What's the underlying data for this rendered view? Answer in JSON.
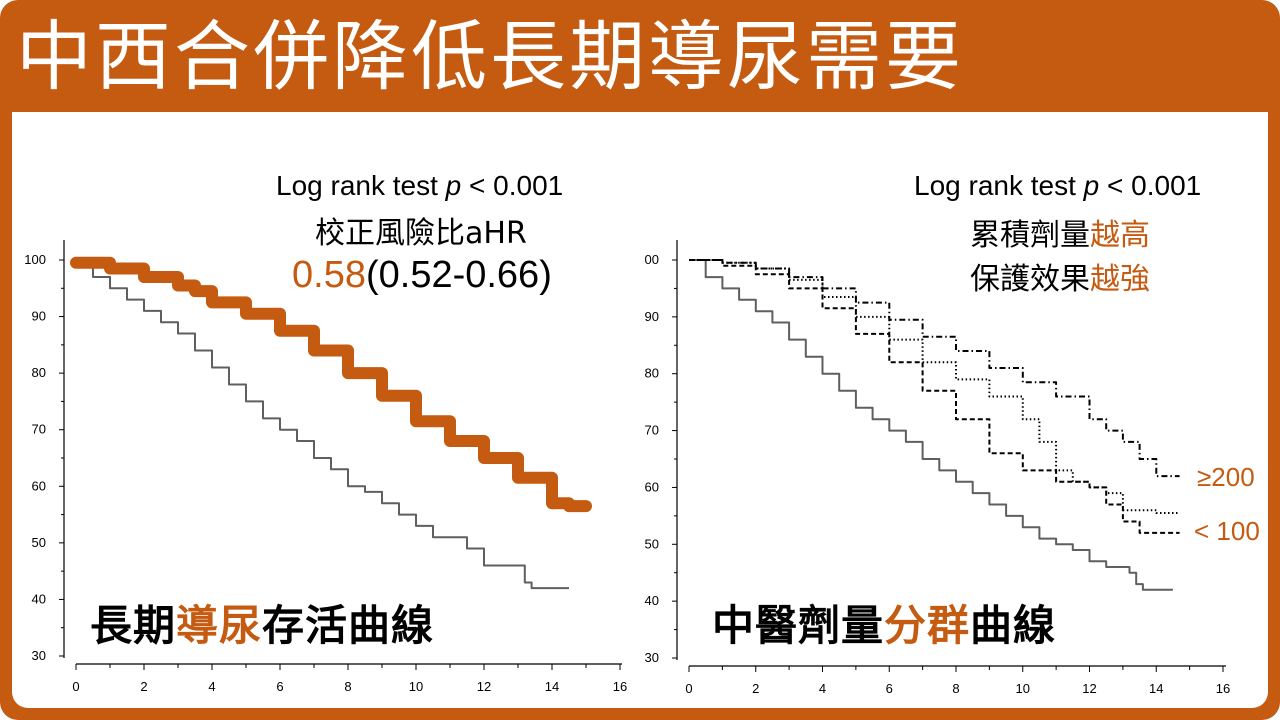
{
  "slide": {
    "title": "中西合併降低長期導尿需要"
  },
  "left_panel": {
    "stat_line": {
      "prefix": "Log rank test ",
      "p": "p",
      "suffix": " < 0.001"
    },
    "ahr_label": "校正風險比aHR",
    "ahr_value": "0.58",
    "ahr_ci": "(0.52-0.66)",
    "caption": {
      "part1": "長期",
      "part2": "導尿",
      "part3": "存活曲線"
    }
  },
  "right_panel": {
    "stat_line": {
      "prefix": "Log rank test ",
      "p": "p",
      "suffix": " < 0.001"
    },
    "line1": {
      "part1": "累積劑量",
      "part2": "越高"
    },
    "line2": {
      "part1": "保護效果",
      "part2": "越強"
    },
    "caption": {
      "part1": "中醫劑量",
      "part2": "分群",
      "part3": "曲線"
    },
    "group_high": "≥200",
    "group_low": "< 100"
  },
  "colors": {
    "accent": "#c55a11",
    "gray_curve": "#5f5f5f",
    "dark_curve": "#000000"
  },
  "chart_data": [
    {
      "type": "line",
      "xlim": [
        0,
        16
      ],
      "ylim": [
        30,
        100
      ],
      "x_ticks": [
        "0",
        "2",
        "4",
        "6",
        "8",
        "10",
        "12",
        "14",
        "16"
      ],
      "y_ticks": [
        "30",
        "40",
        "50",
        "60",
        "70",
        "80",
        "90",
        "100"
      ],
      "grid": false,
      "series": [
        {
          "style": "gray",
          "points": [
            [
              0,
              100
            ],
            [
              0.5,
              97
            ],
            [
              1,
              95
            ],
            [
              1.5,
              93
            ],
            [
              2,
              91
            ],
            [
              2.5,
              89
            ],
            [
              3,
              87
            ],
            [
              3.5,
              84
            ],
            [
              4,
              81
            ],
            [
              4.5,
              78
            ],
            [
              5,
              75
            ],
            [
              5.5,
              72
            ],
            [
              6,
              70
            ],
            [
              6.5,
              68
            ],
            [
              7,
              65
            ],
            [
              7.5,
              63
            ],
            [
              8,
              60
            ],
            [
              8.5,
              59
            ],
            [
              9,
              57
            ],
            [
              9.5,
              55
            ],
            [
              10,
              53
            ],
            [
              10.5,
              51
            ],
            [
              11,
              51
            ],
            [
              11.5,
              49
            ],
            [
              12,
              46
            ],
            [
              13,
              46
            ],
            [
              13.2,
              43
            ],
            [
              13.4,
              42
            ],
            [
              14.5,
              42
            ]
          ]
        },
        {
          "style": "orange-thick",
          "points": [
            [
              0,
              99.5
            ],
            [
              1,
              98.5
            ],
            [
              2,
              97
            ],
            [
              3,
              95.5
            ],
            [
              3.5,
              94.5
            ],
            [
              4,
              92.5
            ],
            [
              5,
              90.5
            ],
            [
              6,
              87.5
            ],
            [
              7,
              84
            ],
            [
              8,
              80
            ],
            [
              9,
              76
            ],
            [
              10,
              71.5
            ],
            [
              11,
              68
            ],
            [
              12,
              65
            ],
            [
              13,
              61.5
            ],
            [
              14,
              57
            ],
            [
              14.5,
              56.5
            ],
            [
              15,
              56.5
            ]
          ]
        }
      ]
    },
    {
      "type": "line",
      "xlim": [
        0,
        16
      ],
      "ylim": [
        30,
        100
      ],
      "x_ticks": [
        "0",
        "2",
        "4",
        "6",
        "8",
        "10",
        "12",
        "14",
        "16"
      ],
      "y_ticks": [
        "30",
        "40",
        "50",
        "60",
        "70",
        "80",
        "90",
        "00"
      ],
      "grid": false,
      "series": [
        {
          "style": "gray",
          "points": [
            [
              0,
              100
            ],
            [
              0.5,
              97
            ],
            [
              1,
              95
            ],
            [
              1.5,
              93
            ],
            [
              2,
              91
            ],
            [
              2.5,
              89
            ],
            [
              3,
              86
            ],
            [
              3.5,
              83
            ],
            [
              4,
              80
            ],
            [
              4.5,
              77
            ],
            [
              5,
              74
            ],
            [
              5.5,
              72
            ],
            [
              6,
              70
            ],
            [
              6.5,
              68
            ],
            [
              7,
              65
            ],
            [
              7.5,
              63
            ],
            [
              8,
              61
            ],
            [
              8.5,
              59
            ],
            [
              9,
              57
            ],
            [
              9.5,
              55
            ],
            [
              10,
              53
            ],
            [
              10.5,
              51
            ],
            [
              11,
              50
            ],
            [
              11.5,
              49
            ],
            [
              12,
              47
            ],
            [
              12.5,
              46
            ],
            [
              13,
              46
            ],
            [
              13.2,
              45
            ],
            [
              13.4,
              43
            ],
            [
              13.6,
              42
            ],
            [
              14.5,
              42
            ]
          ]
        },
        {
          "style": "dashed",
          "points": [
            [
              0,
              100
            ],
            [
              1,
              99
            ],
            [
              2,
              97.5
            ],
            [
              3,
              95
            ],
            [
              4,
              91.5
            ],
            [
              5,
              87
            ],
            [
              6,
              82
            ],
            [
              7,
              77
            ],
            [
              8,
              72
            ],
            [
              9,
              66
            ],
            [
              10,
              63
            ],
            [
              11,
              61
            ],
            [
              12,
              60
            ],
            [
              12.5,
              57
            ],
            [
              13,
              54
            ],
            [
              13.5,
              52
            ],
            [
              14,
              52
            ],
            [
              14.7,
              52
            ]
          ]
        },
        {
          "style": "dotted",
          "points": [
            [
              0,
              100
            ],
            [
              1,
              99.5
            ],
            [
              2,
              98.5
            ],
            [
              3,
              96.5
            ],
            [
              4,
              93.5
            ],
            [
              5,
              90
            ],
            [
              6,
              86
            ],
            [
              7,
              82
            ],
            [
              8,
              79
            ],
            [
              9,
              76
            ],
            [
              10,
              72
            ],
            [
              10.5,
              68
            ],
            [
              11,
              63
            ],
            [
              11.5,
              61
            ],
            [
              12,
              60
            ],
            [
              12.5,
              59
            ],
            [
              13,
              56
            ],
            [
              14,
              55.5
            ],
            [
              14.7,
              55.5
            ]
          ]
        },
        {
          "style": "dash-dot",
          "points": [
            [
              0,
              100
            ],
            [
              1,
              99.5
            ],
            [
              2,
              98.5
            ],
            [
              3,
              97
            ],
            [
              4,
              95
            ],
            [
              5,
              92.5
            ],
            [
              6,
              89.5
            ],
            [
              7,
              86.5
            ],
            [
              8,
              84
            ],
            [
              9,
              81
            ],
            [
              10,
              78.5
            ],
            [
              11,
              76
            ],
            [
              12,
              72
            ],
            [
              12.5,
              70
            ],
            [
              13,
              68
            ],
            [
              13.5,
              65
            ],
            [
              14,
              62
            ],
            [
              14.7,
              62
            ]
          ]
        }
      ]
    }
  ]
}
